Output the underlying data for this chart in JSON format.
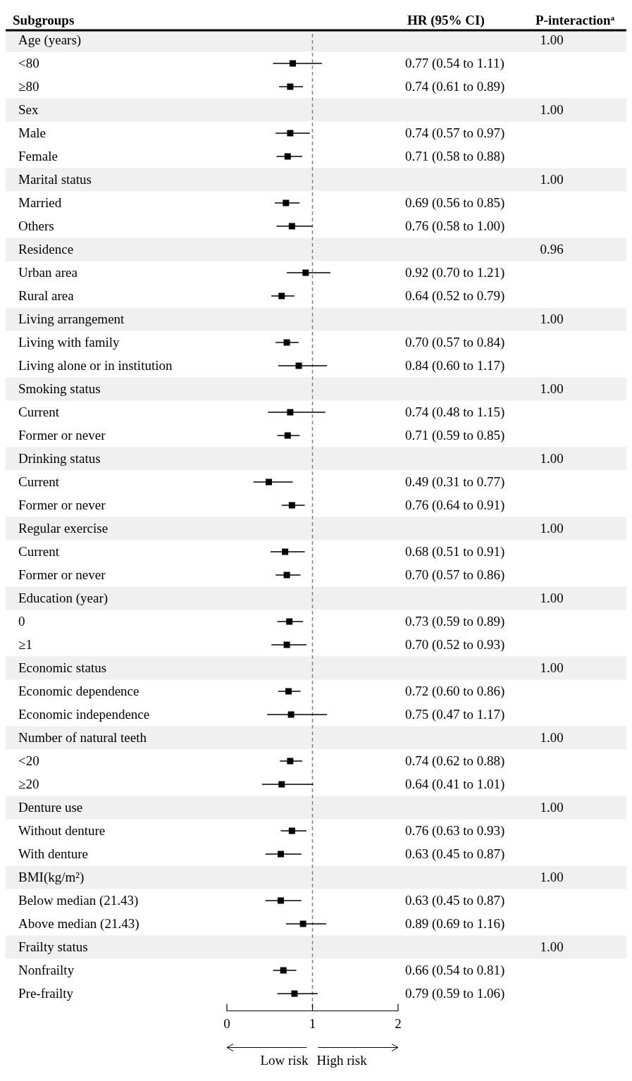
{
  "chart_data": {
    "type": "scatter",
    "orientation": "horizontal",
    "ylabel": "Subgroups",
    "categories": [
      "Age (years)",
      "<80",
      "≥80",
      "Sex",
      "Male",
      "Female",
      "Marital status",
      "Married",
      "Others",
      "Residence",
      "Urban area",
      "Rural area",
      "Living arrangement",
      "Living with family",
      "Living alone or in institution",
      "Smoking status",
      "Current",
      "Former or never",
      "Drinking status",
      "Current",
      "Former or never",
      "Regular exercise",
      "Current",
      "Former or never",
      "Education (year)",
      "0",
      "≥1",
      "Economic status",
      "Economic dependence",
      "Economic independence",
      "Number of natural teeth",
      "<20",
      "≥20",
      "Denture use",
      "Without denture",
      "With denture",
      "BMI(kg/m²)",
      "Below median (21.43)",
      "Above median (21.43)",
      "Frailty status",
      "Nonfrailty",
      "Pre-frailty"
    ],
    "series": [
      {
        "color": "#000000",
        "values": [
          null,
          0.77,
          0.74,
          null,
          0.74,
          0.71,
          null,
          0.69,
          0.76,
          null,
          0.92,
          0.64,
          null,
          0.7,
          0.84,
          null,
          0.74,
          0.71,
          null,
          0.49,
          0.76,
          null,
          0.68,
          0.7,
          null,
          0.73,
          0.7,
          null,
          0.72,
          0.75,
          null,
          0.74,
          0.64,
          null,
          0.76,
          0.63,
          null,
          0.63,
          0.89,
          null,
          0.66,
          0.79
        ],
        "errors": [
          null,
          [
            0.54,
            1.11
          ],
          [
            0.61,
            0.89
          ],
          null,
          [
            0.57,
            0.97
          ],
          [
            0.58,
            0.88
          ],
          null,
          [
            0.56,
            0.85
          ],
          [
            0.58,
            1.0
          ],
          null,
          [
            0.7,
            1.21
          ],
          [
            0.52,
            0.79
          ],
          null,
          [
            0.57,
            0.84
          ],
          [
            0.6,
            1.17
          ],
          null,
          [
            0.48,
            1.15
          ],
          [
            0.59,
            0.85
          ],
          null,
          [
            0.31,
            0.77
          ],
          [
            0.64,
            0.91
          ],
          null,
          [
            0.51,
            0.91
          ],
          [
            0.57,
            0.86
          ],
          null,
          [
            0.59,
            0.89
          ],
          [
            0.52,
            0.93
          ],
          null,
          [
            0.6,
            0.86
          ],
          [
            0.47,
            1.17
          ],
          null,
          [
            0.62,
            0.88
          ],
          [
            0.41,
            1.01
          ],
          null,
          [
            0.63,
            0.93
          ],
          [
            0.45,
            0.87
          ],
          null,
          [
            0.45,
            0.87
          ],
          [
            0.69,
            1.16
          ],
          null,
          [
            0.54,
            0.81
          ],
          [
            0.59,
            1.06
          ]
        ],
        "value_labels": [
          null,
          "0.77 (0.54 to 1.11)",
          "0.74 (0.61 to 0.89)",
          null,
          "0.74 (0.57 to 0.97)",
          "0.71 (0.58 to 0.88)",
          null,
          "0.69 (0.56 to 0.85)",
          "0.76 (0.58 to 1.00)",
          null,
          "0.92 (0.70 to 1.21)",
          "0.64 (0.52 to 0.79)",
          null,
          "0.70 (0.57 to 0.84)",
          "0.84 (0.60 to 1.17)",
          null,
          "0.74 (0.48 to 1.15)",
          "0.71 (0.59 to 0.85)",
          null,
          "0.49 (0.31 to 0.77)",
          "0.76 (0.64 to 0.91)",
          null,
          "0.68 (0.51 to 0.91)",
          "0.70 (0.57 to 0.86)",
          null,
          "0.73 (0.59 to 0.89)",
          "0.70 (0.52 to 0.93)",
          null,
          "0.72 (0.60 to 0.86)",
          "0.75 (0.47 to 1.17)",
          null,
          "0.74 (0.62 to 0.88)",
          "0.64 (0.41 to 1.01)",
          null,
          "0.76 (0.63 to 0.93)",
          "0.63 (0.45 to 0.87)",
          null,
          "0.63 (0.45 to 0.87)",
          "0.89 (0.69 to 1.16)",
          null,
          "0.66 (0.54 to 0.81)",
          "0.79 (0.59 to 1.06)"
        ]
      }
    ],
    "xlim": [
      0,
      2
    ],
    "xticks": [
      0,
      1,
      2
    ],
    "marker": "square",
    "grid": false,
    "ref_lines": [
      {
        "axis": "x",
        "value": 1,
        "color": "#808080",
        "line_style": "dashed"
      }
    ],
    "annotations": [
      "HR (95% CI)",
      "P-interaction$^{a}$",
      "Low risk",
      "High risk",
      "1.00",
      "1.00",
      "1.00",
      "0.96",
      "1.00",
      "1.00",
      "1.00",
      "1.00",
      "1.00",
      "1.00",
      "1.00",
      "1.00",
      "1.00",
      "1.00"
    ]
  }
}
